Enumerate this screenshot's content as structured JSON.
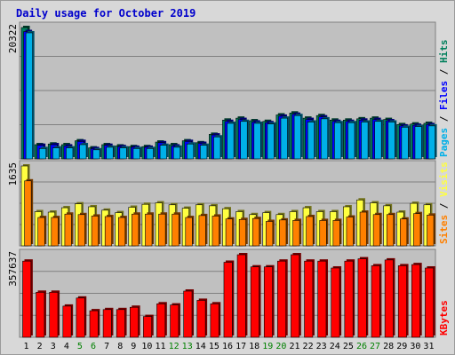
{
  "title": "Daily usage for October 2019",
  "colors": {
    "title": "#0000cc",
    "panel_bg": "#c0c0c0",
    "frame_bg": "#d8d8d8",
    "gridline": "#808080",
    "weekday_label": "#000000",
    "weekend_label": "#008000",
    "hits": "#00805c",
    "files": "#0000ff",
    "pages": "#00b0e8",
    "visits": "#ffff40",
    "sites": "#ff8000",
    "kbytes": "#ff0000",
    "separator": "#000000"
  },
  "chart_data": [
    {
      "type": "bar",
      "panel": "hits-files-pages",
      "axis_max_label": "20322",
      "ylim": [
        0,
        20322
      ],
      "categories": [
        "1",
        "2",
        "3",
        "4",
        "5",
        "6",
        "7",
        "8",
        "9",
        "10",
        "11",
        "12",
        "13",
        "14",
        "15",
        "16",
        "17",
        "18",
        "19",
        "20",
        "21",
        "22",
        "23",
        "24",
        "25",
        "26",
        "27",
        "28",
        "29",
        "30",
        "31"
      ],
      "weekend_days": [
        "5",
        "6",
        "12",
        "13",
        "19",
        "20",
        "26",
        "27"
      ],
      "series": [
        {
          "name": "Hits",
          "color_key": "hits",
          "values": [
            20322,
            2200,
            2300,
            2200,
            2800,
            1700,
            2200,
            2000,
            1900,
            1900,
            2600,
            2200,
            2800,
            2500,
            3800,
            6000,
            6300,
            5900,
            5800,
            6800,
            7100,
            6300,
            6700,
            6000,
            6000,
            6200,
            6300,
            6100,
            5300,
            5400,
            5500
          ]
        },
        {
          "name": "Files",
          "color_key": "files",
          "values": [
            19700,
            2100,
            2200,
            2000,
            2700,
            1600,
            2100,
            1900,
            1800,
            1800,
            2500,
            2000,
            2700,
            2400,
            3700,
            5800,
            6100,
            5700,
            5600,
            6600,
            6900,
            6100,
            6500,
            5800,
            5800,
            6000,
            6100,
            5900,
            5100,
            5200,
            5300
          ]
        },
        {
          "name": "Pages",
          "color_key": "pages",
          "values": [
            19500,
            1600,
            1700,
            1700,
            2200,
            1400,
            1800,
            1700,
            1600,
            1600,
            2100,
            1800,
            2300,
            2100,
            3400,
            5500,
            5800,
            5500,
            5400,
            6300,
            6700,
            5700,
            6200,
            5600,
            5600,
            5700,
            5800,
            5700,
            4900,
            5000,
            5100
          ]
        }
      ],
      "side_labels": [
        {
          "text": "Pages",
          "color_key": "pages"
        },
        {
          "text": " / ",
          "color_key": "separator"
        },
        {
          "text": "Files",
          "color_key": "files"
        },
        {
          "text": " / ",
          "color_key": "separator"
        },
        {
          "text": "Hits",
          "color_key": "hits"
        }
      ]
    },
    {
      "type": "bar",
      "panel": "visits-sites",
      "axis_max_label": "1635",
      "ylim": [
        0,
        1635
      ],
      "categories": [
        "1",
        "2",
        "3",
        "4",
        "5",
        "6",
        "7",
        "8",
        "9",
        "10",
        "11",
        "12",
        "13",
        "14",
        "15",
        "16",
        "17",
        "18",
        "19",
        "20",
        "21",
        "22",
        "23",
        "24",
        "25",
        "26",
        "27",
        "28",
        "29",
        "30",
        "31"
      ],
      "series": [
        {
          "name": "Visits",
          "color_key": "visits",
          "values": [
            1635,
            700,
            690,
            780,
            860,
            800,
            730,
            680,
            790,
            850,
            880,
            840,
            770,
            840,
            820,
            760,
            700,
            640,
            680,
            640,
            700,
            780,
            700,
            700,
            800,
            940,
            880,
            820,
            690,
            870,
            840
          ]
        },
        {
          "name": "Sites",
          "color_key": "sites",
          "values": [
            1330,
            580,
            580,
            650,
            640,
            610,
            600,
            580,
            650,
            650,
            650,
            650,
            580,
            620,
            610,
            550,
            540,
            560,
            500,
            530,
            520,
            600,
            520,
            520,
            590,
            690,
            640,
            640,
            550,
            660,
            630
          ]
        }
      ],
      "side_labels": [
        {
          "text": "Sites",
          "color_key": "sites"
        },
        {
          "text": " / ",
          "color_key": "separator"
        },
        {
          "text": "Visits",
          "color_key": "visits"
        }
      ]
    },
    {
      "type": "bar",
      "panel": "kbytes",
      "axis_max_label": "357637",
      "ylim": [
        0,
        357637
      ],
      "categories": [
        "1",
        "2",
        "3",
        "4",
        "5",
        "6",
        "7",
        "8",
        "9",
        "10",
        "11",
        "12",
        "13",
        "14",
        "15",
        "16",
        "17",
        "18",
        "19",
        "20",
        "21",
        "22",
        "23",
        "24",
        "25",
        "26",
        "27",
        "28",
        "29",
        "30",
        "31"
      ],
      "series": [
        {
          "name": "KBytes",
          "color_key": "kbytes",
          "values": [
            330000,
            195000,
            195000,
            135000,
            170000,
            115000,
            120000,
            120000,
            130000,
            90000,
            145000,
            140000,
            200000,
            160000,
            145000,
            325000,
            357637,
            305000,
            305000,
            330000,
            357637,
            330000,
            330000,
            300000,
            330000,
            340000,
            310000,
            335000,
            310000,
            315000,
            300000
          ]
        }
      ],
      "side_labels": [
        {
          "text": "KBytes",
          "color_key": "kbytes"
        }
      ]
    }
  ]
}
